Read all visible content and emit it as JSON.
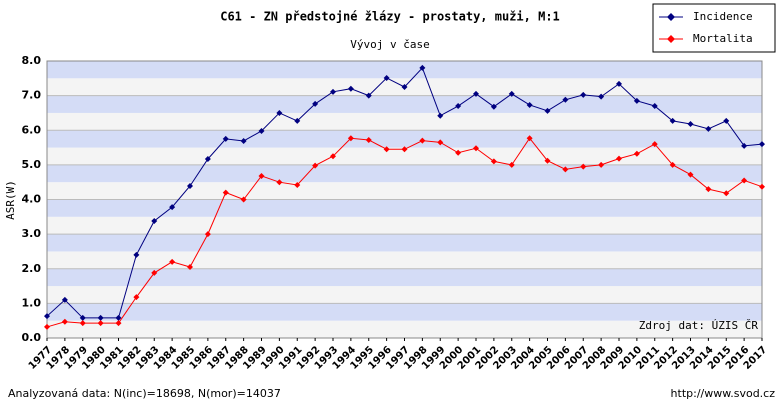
{
  "chart_data": {
    "type": "line",
    "title": "C61 - ZN předstojné žlázy - prostaty, muži, M:1",
    "subtitle": "Vývoj v čase",
    "y_label": "ASR(W)",
    "source_note": "Zdroj dat: ÚZIS ČR",
    "footer_left": "Analyzovaná data: N(inc)=18698, N(mor)=14037",
    "footer_right": "http://www.svod.cz",
    "legend": "top-right",
    "categories": [
      "1977",
      "1978",
      "1979",
      "1980",
      "1981",
      "1982",
      "1983",
      "1984",
      "1985",
      "1986",
      "1987",
      "1988",
      "1989",
      "1990",
      "1991",
      "1992",
      "1993",
      "1994",
      "1995",
      "1996",
      "1997",
      "1998",
      "1999",
      "2000",
      "2001",
      "2002",
      "2003",
      "2004",
      "2005",
      "2006",
      "2007",
      "2008",
      "2009",
      "2010",
      "2011",
      "2012",
      "2013",
      "2014",
      "2015",
      "2016",
      "2017"
    ],
    "series": [
      {
        "name": "Incidence",
        "color": "#000080",
        "values": [
          0.63,
          1.1,
          0.58,
          0.58,
          0.58,
          2.4,
          3.38,
          3.78,
          4.39,
          5.17,
          5.75,
          5.69,
          5.98,
          6.5,
          6.27,
          6.76,
          7.11,
          7.2,
          7.0,
          7.51,
          7.25,
          7.8,
          6.42,
          6.7,
          7.05,
          6.68,
          7.05,
          6.73,
          6.56,
          6.88,
          7.02,
          6.97,
          7.34,
          6.85,
          6.7,
          6.27,
          6.18,
          6.04,
          6.27,
          5.55,
          5.6
        ]
      },
      {
        "name": "Mortalita",
        "color": "#ff0000",
        "values": [
          0.32,
          0.47,
          0.43,
          0.43,
          0.43,
          1.18,
          1.88,
          2.2,
          2.05,
          3.0,
          4.2,
          4.0,
          4.68,
          4.5,
          4.42,
          4.98,
          5.25,
          5.77,
          5.72,
          5.45,
          5.45,
          5.7,
          5.65,
          5.35,
          5.48,
          5.1,
          5.0,
          5.77,
          5.12,
          4.87,
          4.95,
          5.0,
          5.18,
          5.32,
          5.6,
          5.0,
          4.72,
          4.3,
          4.18,
          4.55,
          4.37
        ]
      }
    ],
    "ylim": [
      0,
      8
    ],
    "yticks": [
      {
        "value": 0,
        "label": "0.0"
      },
      {
        "value": 1,
        "label": "1.0"
      },
      {
        "value": 2,
        "label": "2.0"
      },
      {
        "value": 3,
        "label": "3.0"
      },
      {
        "value": 4,
        "label": "4.0"
      },
      {
        "value": 5,
        "label": "5.0"
      },
      {
        "value": 6,
        "label": "6.0"
      },
      {
        "value": 7,
        "label": "7.0"
      },
      {
        "value": 8,
        "label": "8.0"
      }
    ],
    "grid": true
  }
}
